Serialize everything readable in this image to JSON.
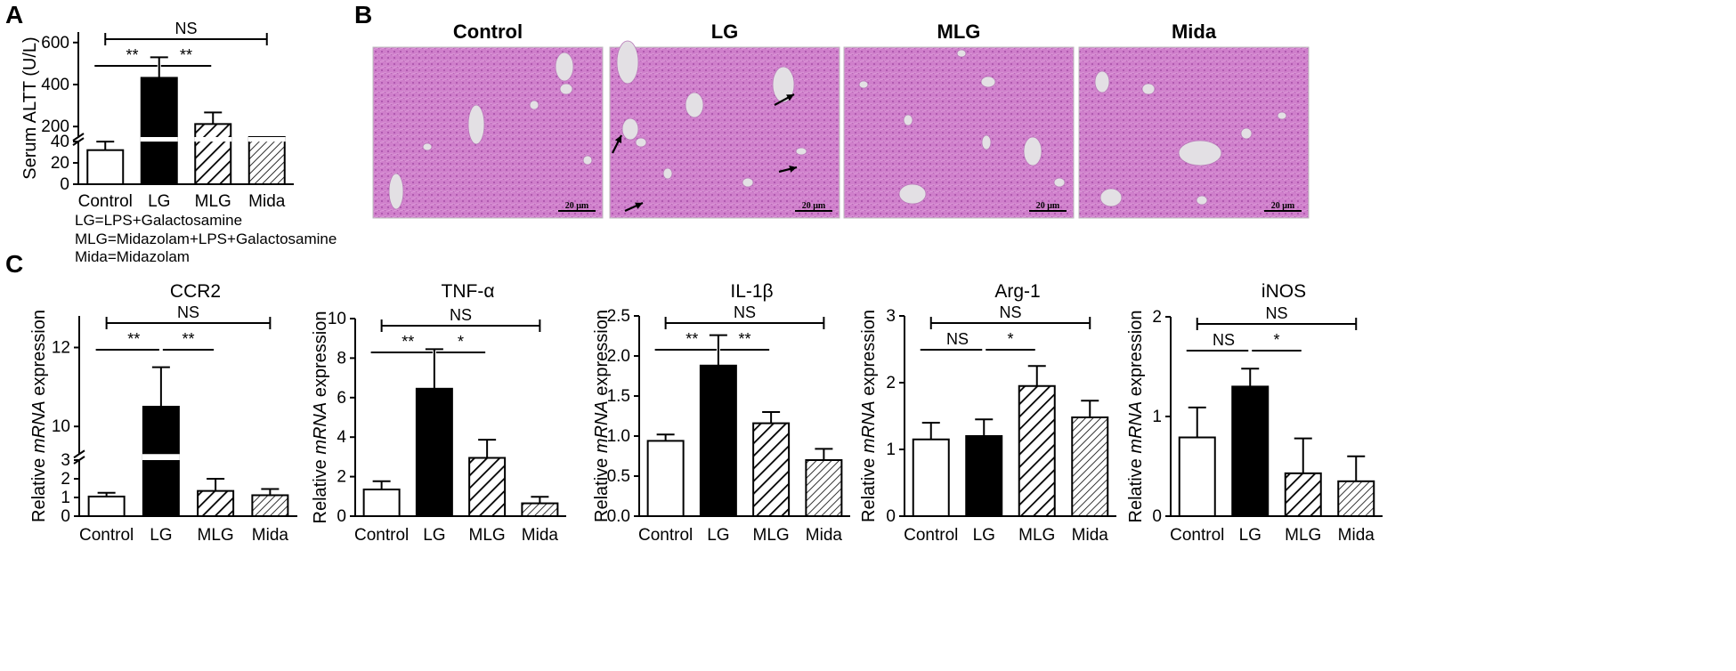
{
  "panels": {
    "a": "A",
    "b": "B",
    "c": "C"
  },
  "legend_notes": [
    "LG=LPS+Galactosamine",
    "MLG=Midazolam+LPS+Galactosamine",
    "Mida=Midazolam"
  ],
  "histology": {
    "titles": [
      "Control",
      "LG",
      "MLG",
      "Mida"
    ],
    "scale_label": "20 μm",
    "colors": {
      "tissue": "#cf7fcb",
      "vessel": "#e3e0e4",
      "frame": "#bbbbbb"
    }
  },
  "colors": {
    "bar_solid": "#000000",
    "bar_open": "#ffffff",
    "axis": "#000000"
  },
  "chart_data": [
    {
      "id": "alt",
      "type": "bar",
      "title": "",
      "ylabel": "Serum ALTT (U/L)",
      "categories": [
        "Control",
        "LG",
        "MLG",
        "Mida"
      ],
      "values": [
        32,
        432,
        212,
        42
      ],
      "errors": [
        8,
        98,
        55,
        5
      ],
      "fills": [
        "open",
        "solid",
        "hatch",
        "hatch-fine"
      ],
      "axis_break": {
        "low_max": 40,
        "high_min": 150
      },
      "ylim": [
        0,
        650
      ],
      "yticks": [
        0,
        20,
        40,
        200,
        400,
        600
      ],
      "significance": [
        {
          "from": 0,
          "to": 3,
          "label": "NS"
        },
        {
          "from": 0,
          "to": 1,
          "label": "**"
        },
        {
          "from": 1,
          "to": 2,
          "label": "**"
        }
      ]
    },
    {
      "id": "ccr2",
      "type": "bar",
      "title": "CCR2",
      "ylabel": "Relative mRNA expression",
      "categories": [
        "Control",
        "LG",
        "MLG",
        "Mida"
      ],
      "values": [
        1.05,
        10.5,
        1.35,
        1.12
      ],
      "errors": [
        0.2,
        1.0,
        0.65,
        0.33
      ],
      "fills": [
        "open",
        "solid",
        "hatch",
        "hatch-fine"
      ],
      "axis_break": {
        "low_max": 3,
        "high_min": 9.3
      },
      "ylim": [
        0,
        12.8
      ],
      "yticks": [
        0,
        1,
        2,
        3,
        10,
        12
      ],
      "significance": [
        {
          "from": 0,
          "to": 3,
          "label": "NS"
        },
        {
          "from": 0,
          "to": 1,
          "label": "**"
        },
        {
          "from": 1,
          "to": 2,
          "label": "**"
        }
      ]
    },
    {
      "id": "tnf",
      "type": "bar",
      "title": "TNF-α",
      "ylabel": "Relative mRNA expression",
      "categories": [
        "Control",
        "LG",
        "MLG",
        "Mida"
      ],
      "values": [
        1.35,
        6.45,
        2.95,
        0.65
      ],
      "errors": [
        0.42,
        2.0,
        0.92,
        0.33
      ],
      "fills": [
        "open",
        "solid",
        "hatch",
        "hatch-fine"
      ],
      "ylim": [
        0,
        10
      ],
      "yticks": [
        0,
        2,
        4,
        6,
        8,
        10
      ],
      "significance": [
        {
          "from": 0,
          "to": 3,
          "label": "NS"
        },
        {
          "from": 0,
          "to": 1,
          "label": "**"
        },
        {
          "from": 1,
          "to": 2,
          "label": "*"
        }
      ]
    },
    {
      "id": "il1b",
      "type": "bar",
      "title": "IL-1β",
      "ylabel": "Relative mRNA expression",
      "categories": [
        "Control",
        "LG",
        "MLG",
        "Mida"
      ],
      "values": [
        0.94,
        1.88,
        1.16,
        0.7
      ],
      "errors": [
        0.08,
        0.38,
        0.14,
        0.14
      ],
      "fills": [
        "open",
        "solid",
        "hatch",
        "hatch-fine"
      ],
      "ylim": [
        0,
        2.5
      ],
      "yticks": [
        0.0,
        0.5,
        1.0,
        1.5,
        2.0,
        2.5
      ],
      "significance": [
        {
          "from": 0,
          "to": 3,
          "label": "NS"
        },
        {
          "from": 0,
          "to": 1,
          "label": "**"
        },
        {
          "from": 1,
          "to": 2,
          "label": "**"
        }
      ]
    },
    {
      "id": "arg1",
      "type": "bar",
      "title": "Arg-1",
      "ylabel": "Relative mRNA expression",
      "categories": [
        "Control",
        "LG",
        "MLG",
        "Mida"
      ],
      "values": [
        1.15,
        1.2,
        1.95,
        1.48
      ],
      "errors": [
        0.25,
        0.25,
        0.3,
        0.25
      ],
      "fills": [
        "open",
        "solid",
        "hatch",
        "hatch-fine"
      ],
      "ylim": [
        0,
        3
      ],
      "yticks": [
        0,
        1,
        2,
        3
      ],
      "significance": [
        {
          "from": 0,
          "to": 3,
          "label": "NS"
        },
        {
          "from": 0,
          "to": 1,
          "label": "NS"
        },
        {
          "from": 1,
          "to": 2,
          "label": "*"
        }
      ]
    },
    {
      "id": "inos",
      "type": "bar",
      "title": "iNOS",
      "ylabel": "Relative mRNA expression",
      "categories": [
        "Control",
        "LG",
        "MLG",
        "Mida"
      ],
      "values": [
        0.79,
        1.3,
        0.43,
        0.35
      ],
      "errors": [
        0.3,
        0.18,
        0.35,
        0.25
      ],
      "fills": [
        "open",
        "solid",
        "hatch",
        "hatch-fine"
      ],
      "ylim": [
        0,
        2
      ],
      "yticks": [
        0,
        1,
        2
      ],
      "significance": [
        {
          "from": 0,
          "to": 3,
          "label": "NS"
        },
        {
          "from": 0,
          "to": 1,
          "label": "NS"
        },
        {
          "from": 1,
          "to": 2,
          "label": "*"
        }
      ]
    }
  ]
}
